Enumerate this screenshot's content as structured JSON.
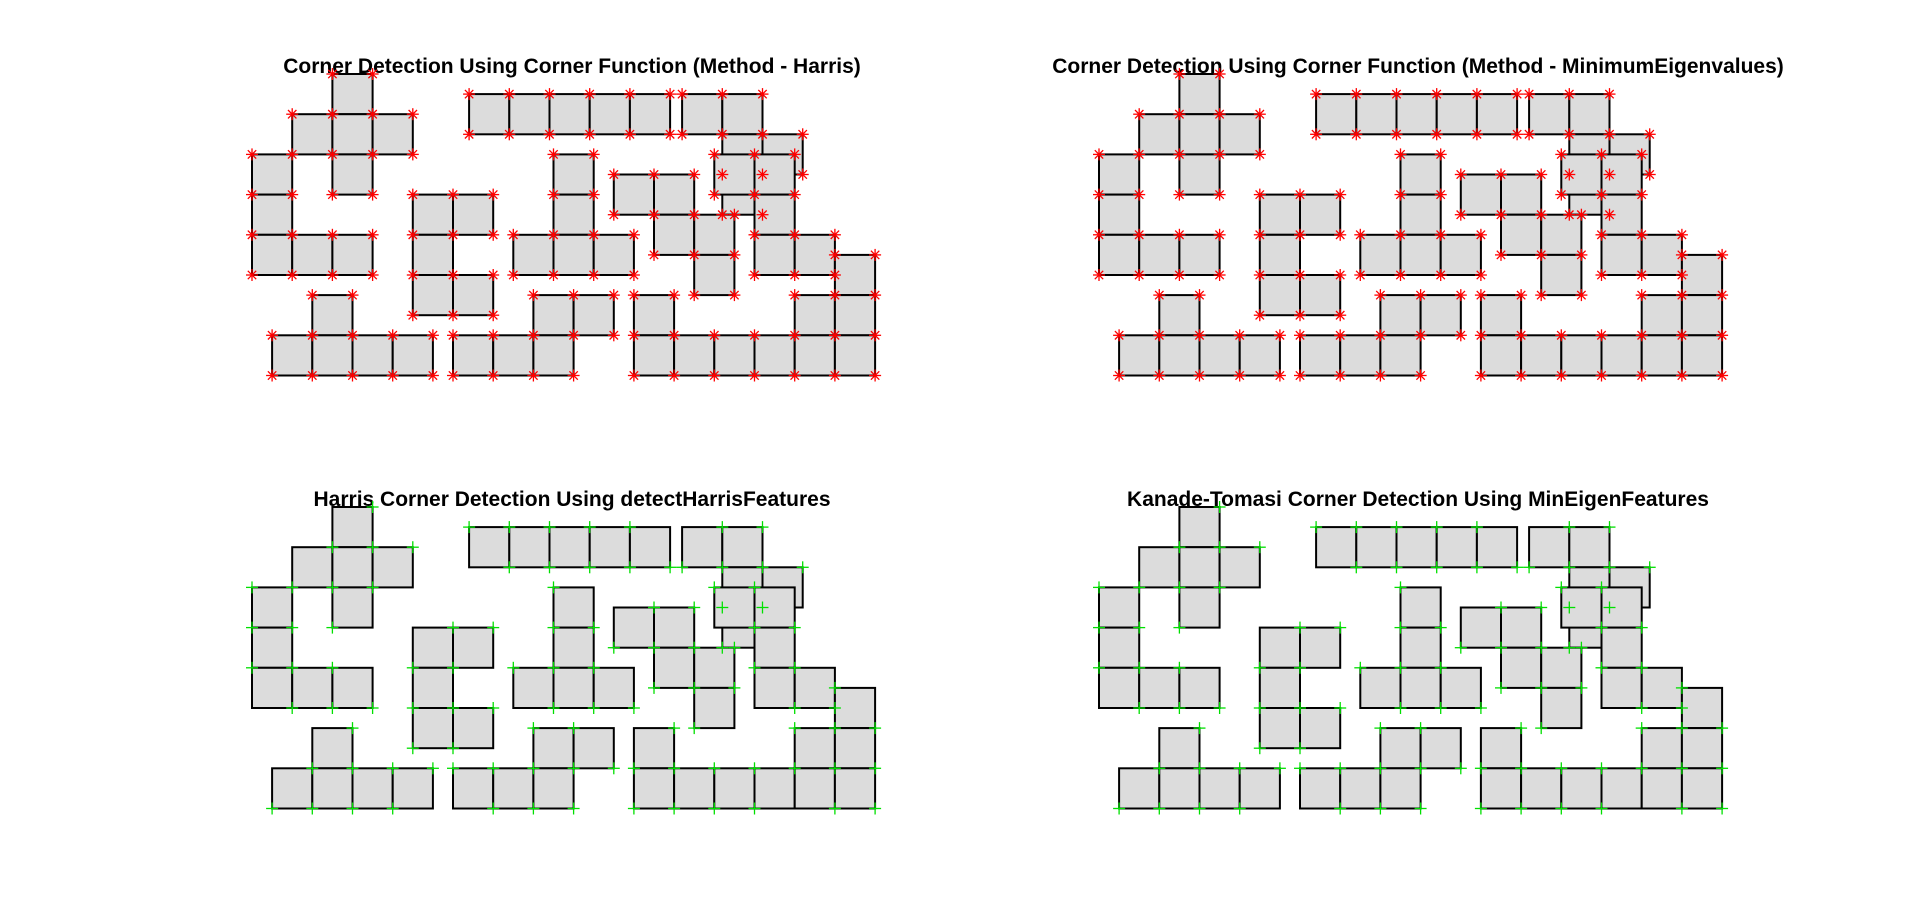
{
  "figure": {
    "panels": [
      {
        "title": "Corner Detection Using Corner Function (Method - Harris)",
        "marker": "asterisk",
        "marker_color": "#ff0000",
        "corner_set": "dense"
      },
      {
        "title": "Corner Detection Using Corner Function (Method - MinimumEigenvalues)",
        "marker": "asterisk",
        "marker_color": "#ff0000",
        "corner_set": "dense"
      },
      {
        "title": "Harris Corner Detection Using detectHarrisFeatures",
        "marker": "plus",
        "marker_color": "#00e000",
        "corner_set": "outer"
      },
      {
        "title": "Kanade-Tomasi Corner Detection Using MinEigenFeatures",
        "marker": "plus",
        "marker_color": "#00e000",
        "corner_set": "outer"
      }
    ],
    "tile_fill": "#dcdcdc",
    "tile_edge": "#000000"
  }
}
